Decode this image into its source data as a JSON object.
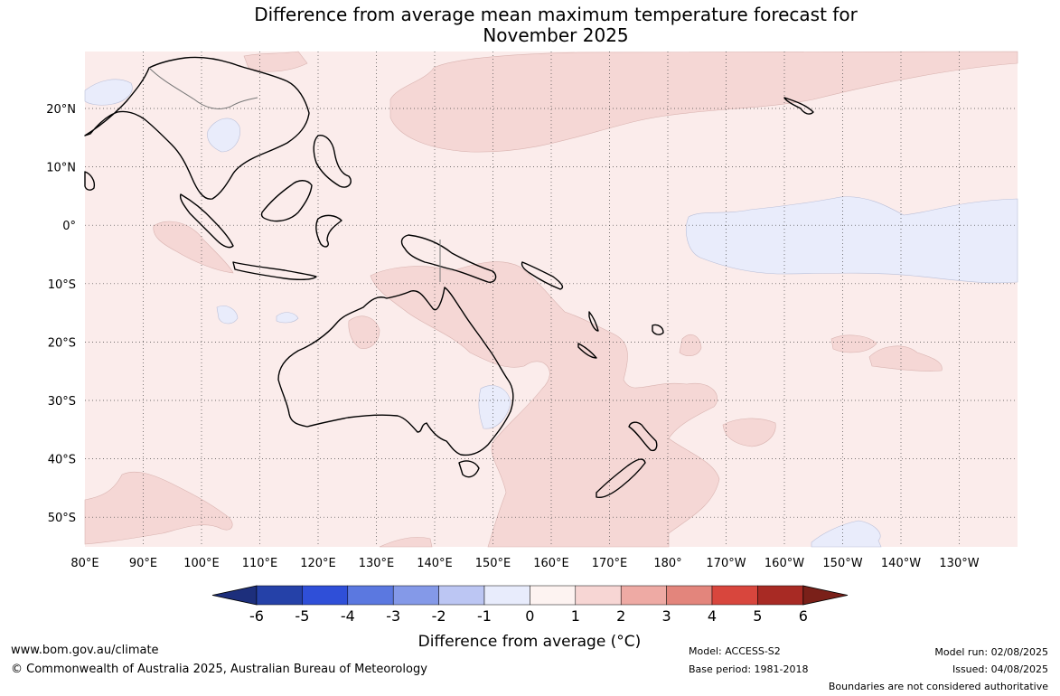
{
  "title": {
    "line1": "Difference from average mean maximum temperature forecast for",
    "line2": "November 2025"
  },
  "axes": {
    "lat_labels": [
      "20°N",
      "10°N",
      "0°",
      "10°S",
      "20°S",
      "30°S",
      "40°S",
      "50°S"
    ],
    "lon_labels": [
      "80°E",
      "90°E",
      "100°E",
      "110°E",
      "120°E",
      "130°E",
      "140°E",
      "150°E",
      "160°E",
      "170°E",
      "180°",
      "170°W",
      "160°W",
      "150°W",
      "140°W",
      "130°W"
    ]
  },
  "colorbar": {
    "ticks": [
      "-6",
      "-5",
      "-4",
      "-3",
      "-2",
      "-1",
      "0",
      "1",
      "2",
      "3",
      "4",
      "5",
      "6"
    ],
    "colors": [
      "#2541a8",
      "#2f4fd8",
      "#5b78e0",
      "#8499e8",
      "#bcc6f3",
      "#e8ecfc",
      "#fdf3f1",
      "#f7d6d4",
      "#eeaaa4",
      "#e3857c",
      "#d8463d",
      "#a82a24"
    ],
    "under_color": "#1d2f7c",
    "over_color": "#7a2019",
    "label": "Difference from average (°C)"
  },
  "map": {
    "background_color": "#fbeceb",
    "warm_color": "#f5d7d5",
    "cool_color": "#e9ecfb",
    "grid": "dotted"
  },
  "footer": {
    "website": "www.bom.gov.au/climate",
    "copyright": "© Commonwealth of Australia 2025, Australian Bureau of Meteorology",
    "model": "Model: ACCESS-S2",
    "base_period": "Base period: 1981-2018",
    "model_run": "Model run: 02/08/2025",
    "issued": "Issued: 04/08/2025",
    "disclaimer": "Boundaries are not considered authoritative"
  }
}
